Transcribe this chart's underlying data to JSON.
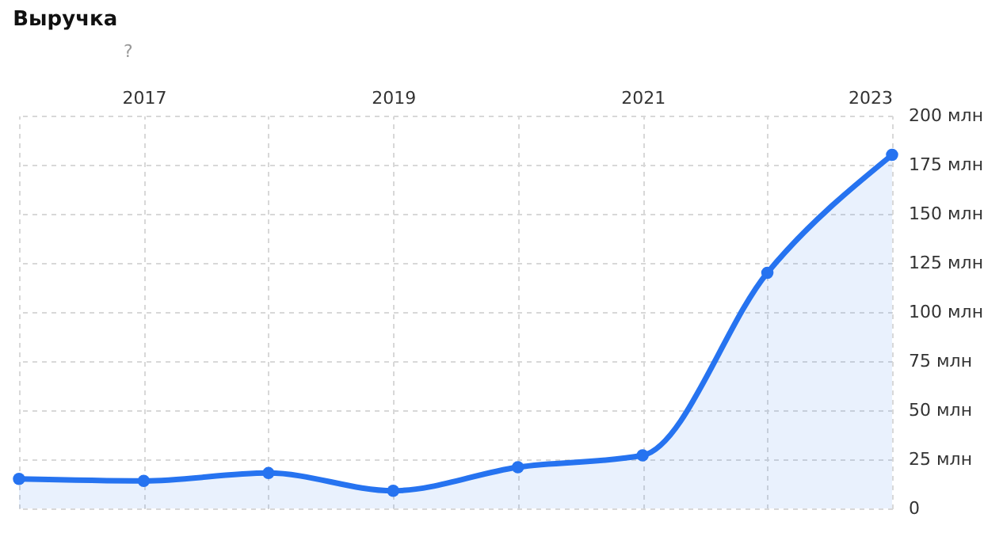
{
  "chart_data": {
    "type": "area",
    "title": "Выручка",
    "annotations": [
      "?"
    ],
    "x": [
      2016,
      2017,
      2018,
      2019,
      2020,
      2021,
      2022,
      2023
    ],
    "series": [
      {
        "color": "#2673f0",
        "values": [
          15,
          14,
          18,
          9,
          21,
          27,
          120,
          180
        ]
      }
    ],
    "xlim": [
      2016,
      2023
    ],
    "xticks": [
      {
        "value": 2016,
        "label": null
      },
      2017,
      {
        "value": 2018,
        "label": null
      },
      2019,
      {
        "value": 2020,
        "label": null
      },
      2021,
      {
        "value": 2022,
        "label": null
      },
      2023
    ],
    "ylim": [
      0,
      200
    ],
    "yticks": [
      0,
      {
        "value": 25,
        "label": "25 млн"
      },
      {
        "value": 50,
        "label": "50 млн"
      },
      {
        "value": 75,
        "label": "75 млн"
      },
      {
        "value": 100,
        "label": "100 млн"
      },
      {
        "value": 125,
        "label": "125 млн"
      },
      {
        "value": 150,
        "label": "150 млн"
      },
      {
        "value": 175,
        "label": "175 млн"
      },
      {
        "value": 200,
        "label": "200 млн"
      }
    ],
    "grid": true,
    "marker": "circle",
    "line_style": "solid"
  }
}
